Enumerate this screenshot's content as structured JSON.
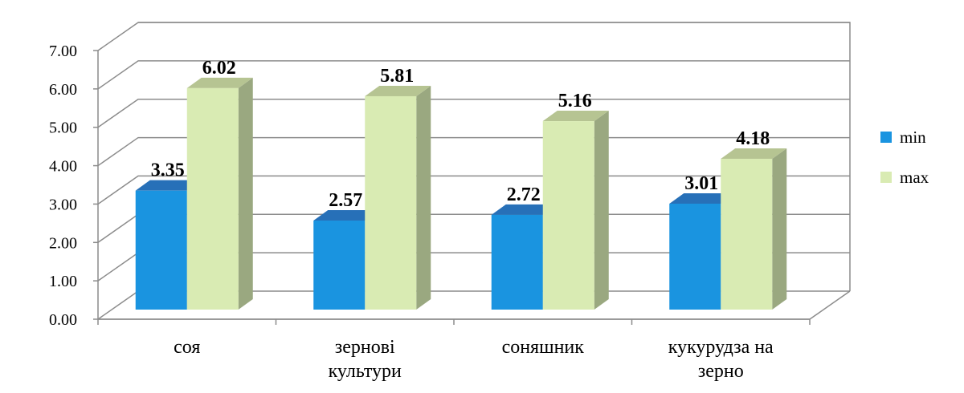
{
  "chart_data": {
    "type": "bar",
    "categories": [
      [
        "соя"
      ],
      [
        "зернові",
        "культури"
      ],
      [
        "соняшник"
      ],
      [
        "кукурудза на",
        "зерно"
      ]
    ],
    "series": [
      {
        "name": "min",
        "values": [
          3.35,
          2.57,
          2.72,
          3.01
        ],
        "color": "#1a94e0",
        "side": "#1279c0",
        "top": "#2770b8"
      },
      {
        "name": "max",
        "values": [
          6.02,
          5.81,
          5.16,
          4.18
        ],
        "color": "#d9ebb3",
        "side": "#9aa880",
        "top": "#b6c492"
      }
    ],
    "y_ticks": [
      "0.00",
      "1.00",
      "2.00",
      "3.00",
      "4.00",
      "5.00",
      "6.00",
      "7.00"
    ],
    "ylim": [
      0,
      7
    ],
    "data_labels": [
      [
        "3.35",
        "2.57",
        "2.72",
        "3.01"
      ],
      [
        "6.02",
        "5.81",
        "5.16",
        "4.18"
      ]
    ],
    "grid": true,
    "three_d": true,
    "legend_position": "right"
  }
}
